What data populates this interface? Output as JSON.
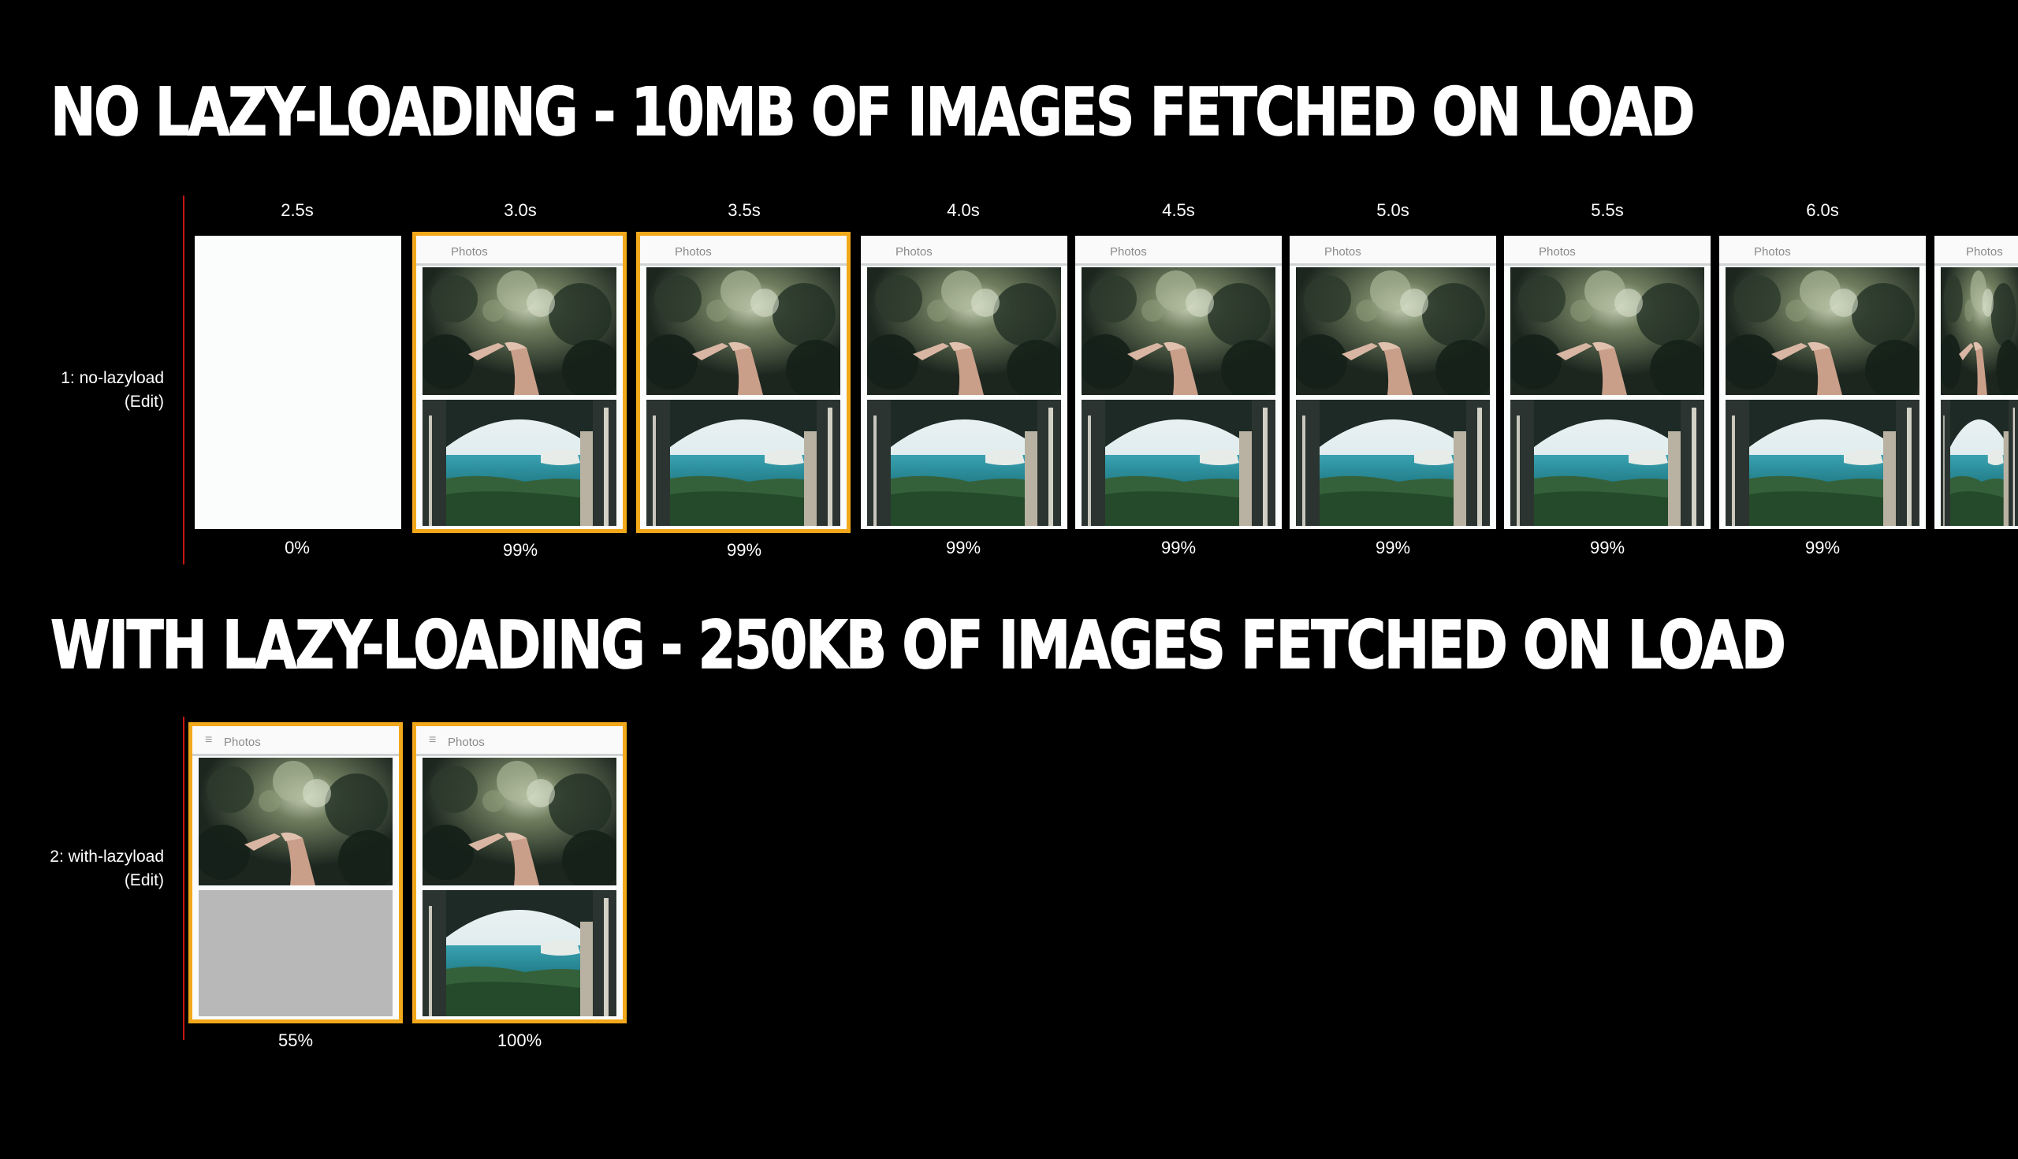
{
  "headline_no_lazy": "NO LAZY-LOADING - 10MB OF IMAGES FETCHED ON LOAD",
  "headline_lazy": "WITH LAZY-LOADING - 250KB OF IMAGES FETCHED ON LOAD",
  "accent_color": "#f2a81b",
  "divider_color": "#c8170f",
  "row1": {
    "label": "1: no-lazyload",
    "edit": "(Edit)",
    "frames": [
      {
        "time": "2.5s",
        "percent": "0%",
        "blank": true,
        "highlight": false
      },
      {
        "time": "3.0s",
        "percent": "99%",
        "page_title": "Photos",
        "highlight": true
      },
      {
        "time": "3.5s",
        "percent": "99%",
        "page_title": "Photos",
        "highlight": true
      },
      {
        "time": "4.0s",
        "percent": "99%",
        "page_title": "Photos",
        "highlight": false
      },
      {
        "time": "4.5s",
        "percent": "99%",
        "page_title": "Photos",
        "highlight": false
      },
      {
        "time": "5.0s",
        "percent": "99%",
        "page_title": "Photos",
        "highlight": false
      },
      {
        "time": "5.5s",
        "percent": "99%",
        "page_title": "Photos",
        "highlight": false
      },
      {
        "time": "6.0s",
        "percent": "99%",
        "page_title": "Photos",
        "highlight": false
      },
      {
        "page_title": "Photos",
        "highlight": false,
        "clipped": true
      }
    ]
  },
  "row2": {
    "label": "2: with-lazyload",
    "edit": "(Edit)",
    "frames": [
      {
        "percent": "55%",
        "page_title": "Photos",
        "highlight": true,
        "second_image_loaded": false,
        "menu_icon": "hamburger-icon"
      },
      {
        "percent": "100%",
        "page_title": "Photos",
        "highlight": true,
        "second_image_loaded": true,
        "menu_icon": "hamburger-icon"
      }
    ]
  }
}
